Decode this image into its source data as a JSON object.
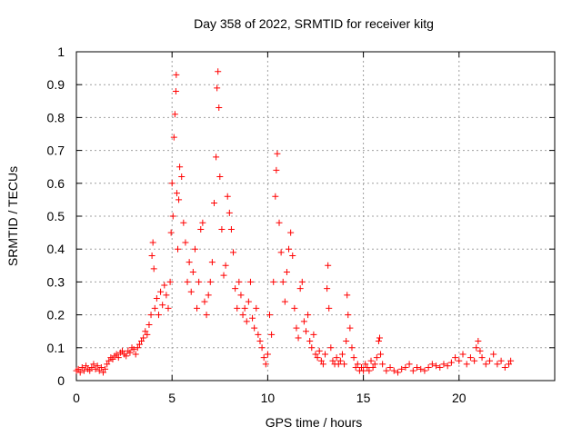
{
  "chart_data": {
    "type": "scatter",
    "title": "Day 358 of 2022, SRMTID for receiver kitg",
    "xlabel": "GPS time / hours",
    "ylabel": "SRMTID / TECUs",
    "xlim": [
      0,
      25
    ],
    "ylim": [
      0,
      1
    ],
    "xticks": [
      0,
      5,
      10,
      15,
      20
    ],
    "xtick_labels": [
      "0",
      "5",
      "10",
      "15",
      "20"
    ],
    "yticks": [
      0,
      0.1,
      0.2,
      0.3,
      0.4,
      0.5,
      0.6,
      0.7,
      0.8,
      0.9,
      1
    ],
    "ytick_labels": [
      "0",
      "0.1",
      "0.2",
      "0.3",
      "0.4",
      "0.5",
      "0.6",
      "0.7",
      "0.8",
      "0.9",
      "1"
    ],
    "grid": true,
    "marker": "+",
    "color": "#ff0000",
    "series": [
      {
        "name": "SRMTID",
        "points": [
          [
            0.0,
            0.03
          ],
          [
            0.1,
            0.035
          ],
          [
            0.2,
            0.025
          ],
          [
            0.3,
            0.04
          ],
          [
            0.4,
            0.03
          ],
          [
            0.5,
            0.045
          ],
          [
            0.6,
            0.035
          ],
          [
            0.7,
            0.03
          ],
          [
            0.8,
            0.04
          ],
          [
            0.9,
            0.05
          ],
          [
            1.0,
            0.035
          ],
          [
            1.1,
            0.045
          ],
          [
            1.2,
            0.03
          ],
          [
            1.3,
            0.04
          ],
          [
            1.4,
            0.025
          ],
          [
            1.5,
            0.035
          ],
          [
            1.6,
            0.05
          ],
          [
            1.7,
            0.06
          ],
          [
            1.8,
            0.07
          ],
          [
            1.9,
            0.065
          ],
          [
            2.0,
            0.075
          ],
          [
            2.1,
            0.08
          ],
          [
            2.2,
            0.07
          ],
          [
            2.3,
            0.085
          ],
          [
            2.4,
            0.09
          ],
          [
            2.5,
            0.08
          ],
          [
            2.6,
            0.075
          ],
          [
            2.7,
            0.09
          ],
          [
            2.8,
            0.085
          ],
          [
            2.9,
            0.1
          ],
          [
            3.0,
            0.095
          ],
          [
            3.1,
            0.08
          ],
          [
            3.2,
            0.1
          ],
          [
            3.3,
            0.11
          ],
          [
            3.4,
            0.12
          ],
          [
            3.5,
            0.13
          ],
          [
            3.6,
            0.15
          ],
          [
            3.7,
            0.14
          ],
          [
            3.8,
            0.17
          ],
          [
            3.9,
            0.2
          ],
          [
            3.95,
            0.38
          ],
          [
            4.0,
            0.42
          ],
          [
            4.05,
            0.34
          ],
          [
            4.1,
            0.22
          ],
          [
            4.2,
            0.25
          ],
          [
            4.3,
            0.2
          ],
          [
            4.4,
            0.27
          ],
          [
            4.5,
            0.23
          ],
          [
            4.6,
            0.29
          ],
          [
            4.7,
            0.26
          ],
          [
            4.8,
            0.22
          ],
          [
            4.9,
            0.3
          ],
          [
            4.95,
            0.45
          ],
          [
            5.0,
            0.6
          ],
          [
            5.05,
            0.5
          ],
          [
            5.1,
            0.74
          ],
          [
            5.15,
            0.81
          ],
          [
            5.2,
            0.88
          ],
          [
            5.22,
            0.93
          ],
          [
            5.25,
            0.57
          ],
          [
            5.3,
            0.4
          ],
          [
            5.35,
            0.55
          ],
          [
            5.4,
            0.65
          ],
          [
            5.5,
            0.62
          ],
          [
            5.6,
            0.48
          ],
          [
            5.7,
            0.42
          ],
          [
            5.8,
            0.3
          ],
          [
            5.9,
            0.36
          ],
          [
            6.0,
            0.27
          ],
          [
            6.1,
            0.33
          ],
          [
            6.2,
            0.4
          ],
          [
            6.3,
            0.22
          ],
          [
            6.4,
            0.3
          ],
          [
            6.5,
            0.46
          ],
          [
            6.6,
            0.48
          ],
          [
            6.7,
            0.24
          ],
          [
            6.8,
            0.2
          ],
          [
            6.9,
            0.26
          ],
          [
            7.0,
            0.3
          ],
          [
            7.1,
            0.36
          ],
          [
            7.2,
            0.54
          ],
          [
            7.3,
            0.68
          ],
          [
            7.35,
            0.89
          ],
          [
            7.4,
            0.94
          ],
          [
            7.45,
            0.83
          ],
          [
            7.5,
            0.62
          ],
          [
            7.6,
            0.46
          ],
          [
            7.7,
            0.32
          ],
          [
            7.8,
            0.35
          ],
          [
            7.9,
            0.56
          ],
          [
            8.0,
            0.51
          ],
          [
            8.1,
            0.46
          ],
          [
            8.2,
            0.39
          ],
          [
            8.3,
            0.28
          ],
          [
            8.4,
            0.22
          ],
          [
            8.5,
            0.3
          ],
          [
            8.6,
            0.26
          ],
          [
            8.7,
            0.2
          ],
          [
            8.8,
            0.22
          ],
          [
            8.9,
            0.18
          ],
          [
            9.0,
            0.24
          ],
          [
            9.1,
            0.3
          ],
          [
            9.2,
            0.19
          ],
          [
            9.3,
            0.16
          ],
          [
            9.4,
            0.22
          ],
          [
            9.5,
            0.14
          ],
          [
            9.6,
            0.12
          ],
          [
            9.7,
            0.1
          ],
          [
            9.8,
            0.07
          ],
          [
            9.9,
            0.05
          ],
          [
            10.0,
            0.08
          ],
          [
            10.1,
            0.2
          ],
          [
            10.2,
            0.14
          ],
          [
            10.3,
            0.3
          ],
          [
            10.4,
            0.56
          ],
          [
            10.45,
            0.64
          ],
          [
            10.5,
            0.69
          ],
          [
            10.6,
            0.48
          ],
          [
            10.7,
            0.39
          ],
          [
            10.8,
            0.3
          ],
          [
            10.9,
            0.24
          ],
          [
            11.0,
            0.33
          ],
          [
            11.1,
            0.4
          ],
          [
            11.2,
            0.45
          ],
          [
            11.3,
            0.38
          ],
          [
            11.4,
            0.22
          ],
          [
            11.5,
            0.16
          ],
          [
            11.6,
            0.13
          ],
          [
            11.7,
            0.28
          ],
          [
            11.8,
            0.3
          ],
          [
            11.9,
            0.18
          ],
          [
            12.0,
            0.15
          ],
          [
            12.1,
            0.2
          ],
          [
            12.2,
            0.12
          ],
          [
            12.3,
            0.1
          ],
          [
            12.4,
            0.14
          ],
          [
            12.5,
            0.08
          ],
          [
            12.6,
            0.07
          ],
          [
            12.7,
            0.09
          ],
          [
            12.8,
            0.06
          ],
          [
            12.9,
            0.05
          ],
          [
            13.0,
            0.08
          ],
          [
            13.1,
            0.28
          ],
          [
            13.15,
            0.35
          ],
          [
            13.2,
            0.22
          ],
          [
            13.3,
            0.1
          ],
          [
            13.4,
            0.06
          ],
          [
            13.5,
            0.05
          ],
          [
            13.6,
            0.07
          ],
          [
            13.7,
            0.05
          ],
          [
            13.8,
            0.06
          ],
          [
            13.9,
            0.08
          ],
          [
            14.0,
            0.05
          ],
          [
            14.1,
            0.12
          ],
          [
            14.15,
            0.26
          ],
          [
            14.2,
            0.2
          ],
          [
            14.3,
            0.16
          ],
          [
            14.4,
            0.1
          ],
          [
            14.5,
            0.07
          ],
          [
            14.6,
            0.04
          ],
          [
            14.7,
            0.05
          ],
          [
            14.8,
            0.03
          ],
          [
            14.9,
            0.04
          ],
          [
            15.0,
            0.03
          ],
          [
            15.1,
            0.05
          ],
          [
            15.2,
            0.04
          ],
          [
            15.3,
            0.03
          ],
          [
            15.4,
            0.06
          ],
          [
            15.5,
            0.04
          ],
          [
            15.6,
            0.05
          ],
          [
            15.7,
            0.07
          ],
          [
            15.8,
            0.12
          ],
          [
            15.85,
            0.13
          ],
          [
            15.9,
            0.08
          ],
          [
            16.0,
            0.05
          ],
          [
            16.2,
            0.03
          ],
          [
            16.4,
            0.04
          ],
          [
            16.6,
            0.03
          ],
          [
            16.8,
            0.025
          ],
          [
            17.0,
            0.035
          ],
          [
            17.2,
            0.04
          ],
          [
            17.4,
            0.05
          ],
          [
            17.6,
            0.03
          ],
          [
            17.8,
            0.04
          ],
          [
            18.0,
            0.035
          ],
          [
            18.2,
            0.03
          ],
          [
            18.4,
            0.04
          ],
          [
            18.6,
            0.05
          ],
          [
            18.8,
            0.045
          ],
          [
            19.0,
            0.04
          ],
          [
            19.2,
            0.05
          ],
          [
            19.4,
            0.045
          ],
          [
            19.6,
            0.055
          ],
          [
            19.8,
            0.07
          ],
          [
            20.0,
            0.06
          ],
          [
            20.2,
            0.08
          ],
          [
            20.4,
            0.05
          ],
          [
            20.6,
            0.07
          ],
          [
            20.8,
            0.06
          ],
          [
            20.9,
            0.1
          ],
          [
            21.0,
            0.12
          ],
          [
            21.1,
            0.09
          ],
          [
            21.2,
            0.07
          ],
          [
            21.4,
            0.05
          ],
          [
            21.6,
            0.06
          ],
          [
            21.8,
            0.08
          ],
          [
            22.0,
            0.05
          ],
          [
            22.2,
            0.06
          ],
          [
            22.4,
            0.04
          ],
          [
            22.6,
            0.05
          ],
          [
            22.7,
            0.06
          ]
        ]
      }
    ]
  }
}
